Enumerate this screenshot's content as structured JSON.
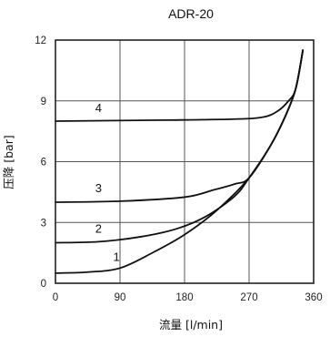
{
  "chart_data": {
    "type": "line",
    "title": "ADR-20",
    "xlabel": "流量 [l/min]",
    "ylabel": "压降 [bar]",
    "xlim": [
      0,
      360
    ],
    "ylim": [
      0,
      12
    ],
    "xticks": [
      "0",
      "90",
      "180",
      "270",
      "360"
    ],
    "yticks": [
      "0",
      "3",
      "6",
      "9",
      "12"
    ],
    "grid": true,
    "series": [
      {
        "name": "1",
        "x": [
          0,
          45,
          90,
          135,
          180,
          225,
          270,
          300,
          320,
          335,
          345
        ],
        "y": [
          0.5,
          0.55,
          0.75,
          1.5,
          2.4,
          3.6,
          5.2,
          6.8,
          8.2,
          9.6,
          11.5
        ]
      },
      {
        "name": "2",
        "x": [
          0,
          60,
          120,
          170,
          210,
          250,
          270,
          300,
          320,
          335,
          345
        ],
        "y": [
          2.0,
          2.05,
          2.3,
          2.7,
          3.3,
          4.3,
          5.2,
          6.8,
          8.2,
          9.6,
          11.5
        ]
      },
      {
        "name": "3",
        "x": [
          0,
          90,
          180,
          220,
          250,
          270,
          300,
          320,
          335,
          345
        ],
        "y": [
          4.0,
          4.05,
          4.25,
          4.6,
          4.9,
          5.2,
          6.8,
          8.2,
          9.6,
          11.5
        ]
      },
      {
        "name": "4",
        "x": [
          0,
          150,
          250,
          290,
          310,
          325,
          335,
          345
        ],
        "y": [
          8.0,
          8.05,
          8.1,
          8.2,
          8.5,
          9.0,
          9.6,
          11.5
        ]
      }
    ],
    "label_anchor": [
      {
        "text": "1",
        "x": 85,
        "y": 1.1
      },
      {
        "text": "2",
        "x": 60,
        "y": 2.5
      },
      {
        "text": "3",
        "x": 60,
        "y": 4.5
      },
      {
        "text": "4",
        "x": 60,
        "y": 8.45
      }
    ]
  }
}
